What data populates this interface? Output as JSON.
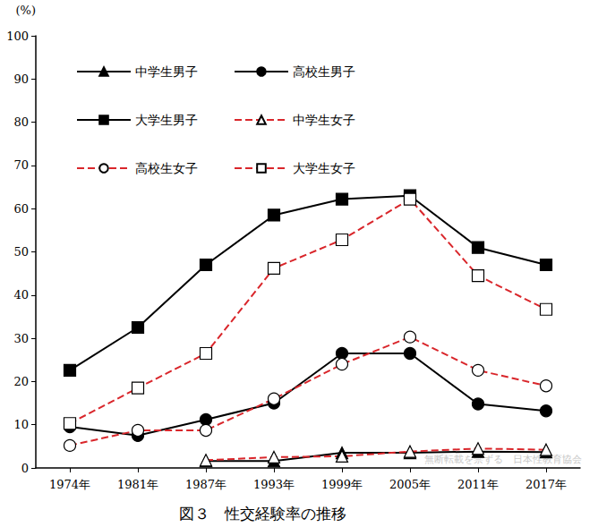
{
  "chart_data": {
    "type": "line",
    "title": "図３　性交経験率の推移",
    "y_label": "(%)",
    "annotation": "無断転載を禁ずる　日本性教育協会",
    "categories": [
      "1974年",
      "1981年",
      "1987年",
      "1993年",
      "1999年",
      "2005年",
      "2011年",
      "2017年"
    ],
    "series": [
      {
        "name": "中学生男子",
        "color": "#000000",
        "marker": "triangle",
        "line_style": "solid",
        "values": [
          null,
          null,
          1.6,
          1.6,
          3.5,
          3.5,
          3.8,
          3.7
        ]
      },
      {
        "name": "高校生男子",
        "color": "#000000",
        "marker": "circle",
        "line_style": "solid",
        "values": [
          9.5,
          7.5,
          11.2,
          15.0,
          26.5,
          26.5,
          14.8,
          13.2
        ]
      },
      {
        "name": "大学生男子",
        "color": "#000000",
        "marker": "square",
        "line_style": "solid",
        "values": [
          22.6,
          32.5,
          47.0,
          58.5,
          62.2,
          63.0,
          51.0,
          47.0
        ]
      },
      {
        "name": "中学生女子",
        "color": "#d9262b",
        "marker": "triangle-open",
        "line_style": "dashed",
        "values": [
          null,
          null,
          1.8,
          2.5,
          2.7,
          3.8,
          4.5,
          4.2
        ]
      },
      {
        "name": "高校生女子",
        "color": "#d9262b",
        "marker": "circle-open",
        "line_style": "dashed",
        "values": [
          5.2,
          8.7,
          8.7,
          16.0,
          24.0,
          30.3,
          22.6,
          19.0
        ]
      },
      {
        "name": "大学生女子",
        "color": "#d9262b",
        "marker": "square-open",
        "line_style": "dashed",
        "values": [
          10.3,
          18.5,
          26.5,
          46.2,
          52.8,
          62.2,
          44.5,
          36.7
        ]
      }
    ],
    "ylim": [
      0,
      100
    ],
    "yticks": [
      0,
      10,
      20,
      30,
      40,
      50,
      60,
      70,
      80,
      90,
      100
    ],
    "grid": false,
    "legend": "upper left"
  }
}
